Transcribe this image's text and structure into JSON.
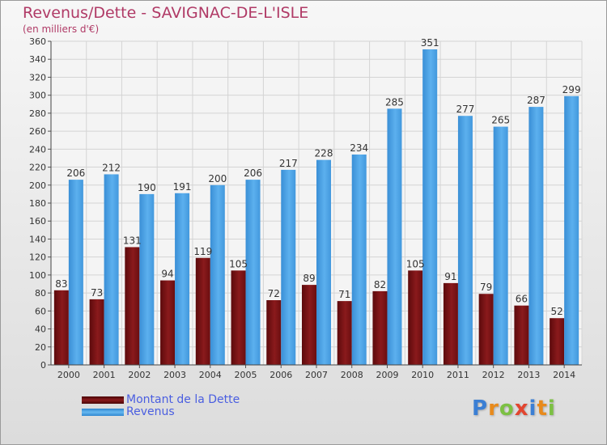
{
  "chart_data": {
    "type": "bar",
    "title": "Revenus/Dette - SAVIGNAC-DE-L'ISLE",
    "subtitle": "(en milliers d'€)",
    "categories": [
      "2000",
      "2001",
      "2002",
      "2003",
      "2004",
      "2005",
      "2006",
      "2007",
      "2008",
      "2009",
      "2010",
      "2011",
      "2012",
      "2013",
      "2014"
    ],
    "series": [
      {
        "name": "Montant de la Dette",
        "color": "#7a1214",
        "values": [
          83,
          73,
          131,
          94,
          119,
          105,
          72,
          89,
          71,
          82,
          105,
          91,
          79,
          66,
          52
        ]
      },
      {
        "name": "Revenus",
        "color": "#4da3e8",
        "values": [
          206,
          212,
          190,
          191,
          200,
          206,
          217,
          228,
          234,
          285,
          351,
          277,
          265,
          287,
          299
        ]
      }
    ],
    "ylim": [
      0,
      360
    ],
    "yticks": [
      0,
      20,
      40,
      60,
      80,
      100,
      120,
      140,
      160,
      180,
      200,
      220,
      240,
      260,
      280,
      300,
      320,
      340,
      360
    ],
    "grid": true,
    "legend": "bottom-left"
  },
  "logo": {
    "letters": [
      "P",
      "r",
      "o",
      "x",
      "i",
      "t",
      "i"
    ],
    "colors": [
      "#3b7fd4",
      "#e88a1c",
      "#7cc043",
      "#e2452f",
      "#3b7fd4",
      "#e88a1c",
      "#7cc043"
    ],
    "text": "Proxiti"
  }
}
